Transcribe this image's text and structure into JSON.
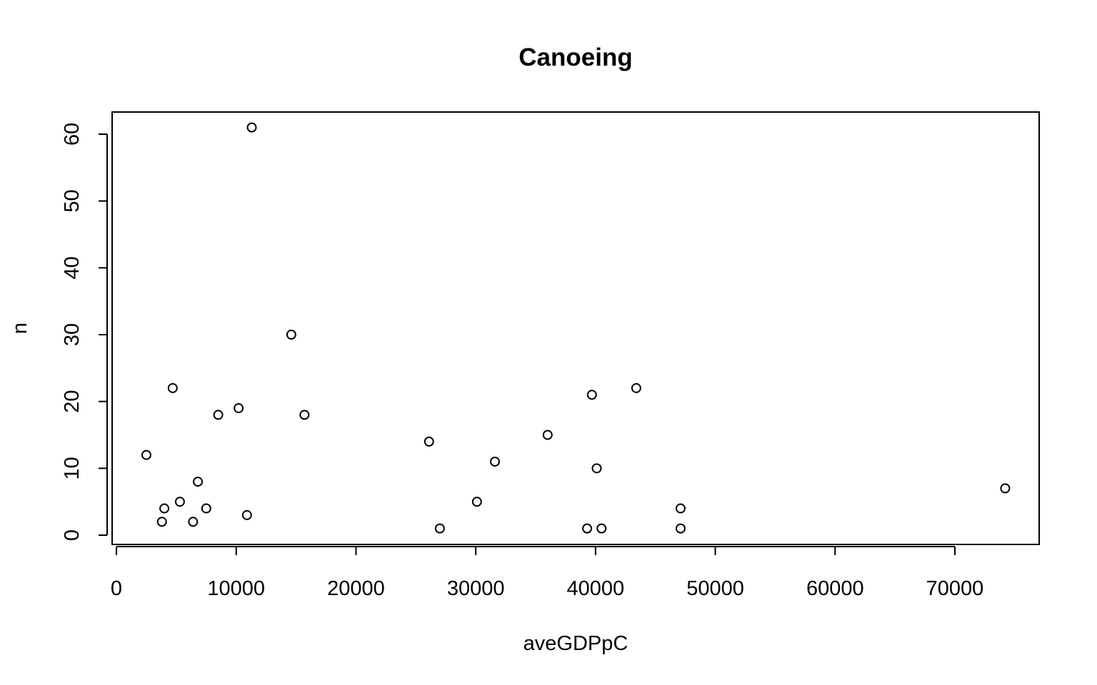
{
  "chart_data": {
    "type": "scatter",
    "title": "Canoeing",
    "xlabel": "aveGDPpC",
    "ylabel": "n",
    "xlim": [
      0,
      77000
    ],
    "ylim": [
      0,
      65
    ],
    "x_ticks": [
      0,
      10000,
      20000,
      30000,
      40000,
      50000,
      60000,
      70000
    ],
    "y_ticks": [
      0,
      10,
      20,
      30,
      40,
      50,
      60
    ],
    "grid": false,
    "legend": false,
    "marker": "open-circle",
    "colors": {
      "marker": "#000000",
      "axis": "#000000",
      "background": "#ffffff"
    },
    "points": [
      {
        "x": 2500,
        "y": 12
      },
      {
        "x": 3800,
        "y": 2
      },
      {
        "x": 4000,
        "y": 4
      },
      {
        "x": 4700,
        "y": 22
      },
      {
        "x": 5300,
        "y": 5
      },
      {
        "x": 6400,
        "y": 2
      },
      {
        "x": 6800,
        "y": 8
      },
      {
        "x": 7500,
        "y": 4
      },
      {
        "x": 8500,
        "y": 18
      },
      {
        "x": 10200,
        "y": 19
      },
      {
        "x": 10900,
        "y": 3
      },
      {
        "x": 11300,
        "y": 61
      },
      {
        "x": 14600,
        "y": 30
      },
      {
        "x": 15700,
        "y": 18
      },
      {
        "x": 26100,
        "y": 14
      },
      {
        "x": 27000,
        "y": 1
      },
      {
        "x": 30100,
        "y": 5
      },
      {
        "x": 31600,
        "y": 11
      },
      {
        "x": 36000,
        "y": 15
      },
      {
        "x": 39300,
        "y": 1
      },
      {
        "x": 39700,
        "y": 21
      },
      {
        "x": 40100,
        "y": 10
      },
      {
        "x": 40500,
        "y": 1
      },
      {
        "x": 43400,
        "y": 22
      },
      {
        "x": 47100,
        "y": 4
      },
      {
        "x": 47100,
        "y": 1
      },
      {
        "x": 74200,
        "y": 7
      }
    ]
  }
}
